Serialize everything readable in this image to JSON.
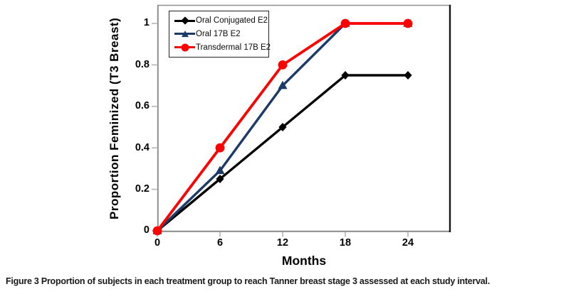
{
  "figure": {
    "caption_label": "Figure 3",
    "caption_text": "Proportion of subjects in each treatment group to reach Tanner breast stage 3 assessed at each study interval."
  },
  "chart_data": {
    "type": "line",
    "title": "",
    "xlabel": "Months",
    "ylabel": "Proportion Feminized (T3 Breast)",
    "x": [
      0,
      6,
      12,
      18,
      24
    ],
    "xlim": [
      0,
      28
    ],
    "ylim": [
      0,
      1.09
    ],
    "grid": false,
    "legend_position": "top-left-inside",
    "xticks": [
      {
        "label": "0",
        "value": 0
      },
      {
        "label": "6",
        "value": 6
      },
      {
        "label": "12",
        "value": 12
      },
      {
        "label": "18",
        "value": 18
      },
      {
        "label": "24",
        "value": 24
      }
    ],
    "yticks": [
      {
        "label": "1",
        "value": 1
      },
      {
        "label": "0.8",
        "value": 0.8
      },
      {
        "label": "0.6",
        "value": 0.6
      },
      {
        "label": "0.4",
        "value": 0.4
      },
      {
        "label": "0.2",
        "value": 0.2
      },
      {
        "label": "0",
        "value": 0
      }
    ],
    "series": [
      {
        "name": "Oral Conjugated E2",
        "color": "#000000",
        "marker": "diamond",
        "line_width": 3.4,
        "values": [
          0,
          0.25,
          0.5,
          0.75,
          0.75
        ]
      },
      {
        "name": "Oral 17B E2",
        "color": "#1B3A68",
        "marker": "triangle",
        "line_width": 3.4,
        "values": [
          0,
          0.29,
          0.7,
          1,
          1
        ]
      },
      {
        "name": "Transdermal 17B E2",
        "color": "#FF0000",
        "marker": "circle",
        "line_width": 3.8,
        "values": [
          0,
          0.4,
          0.8,
          1,
          1
        ]
      }
    ],
    "frame_colors": {
      "axis_gray": "#8f8f8f",
      "right_border": "#161616",
      "tick_gray": "#b5b5b5"
    }
  }
}
